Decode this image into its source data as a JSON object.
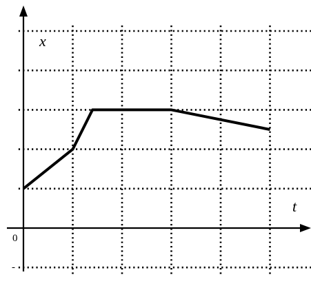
{
  "chart_data": {
    "type": "line",
    "xlabel": "t",
    "ylabel": "x",
    "origin_label": "0",
    "neg_tick_label": "-",
    "xlim": [
      0,
      5.95
    ],
    "ylim": [
      -1,
      5
    ],
    "x_gridlines": [
      1,
      2,
      3,
      4,
      5
    ],
    "y_gridlines": [
      -1,
      1,
      2,
      3,
      4,
      5
    ],
    "grid": true,
    "series": [
      {
        "points": [
          [
            0,
            1
          ],
          [
            1,
            2
          ],
          [
            1.4,
            3
          ],
          [
            3,
            3
          ],
          [
            5,
            2.5
          ]
        ]
      }
    ]
  }
}
